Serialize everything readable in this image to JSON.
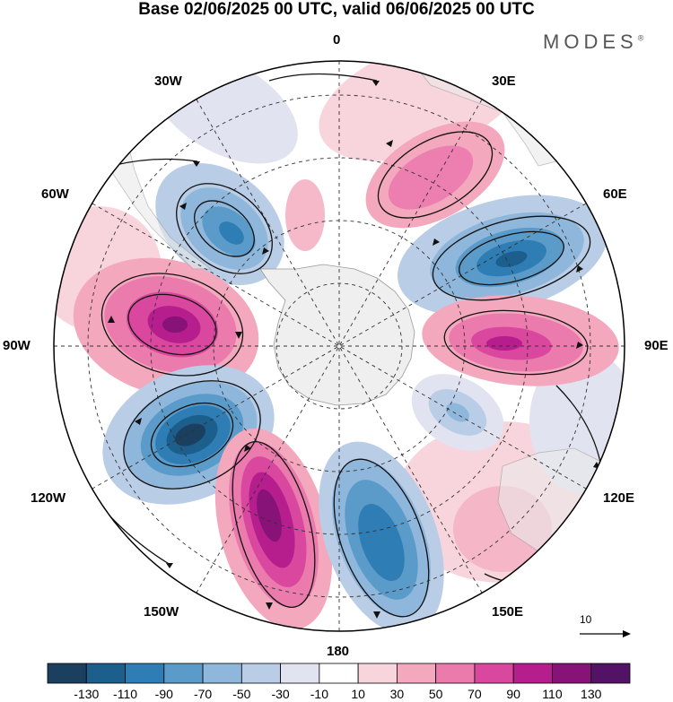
{
  "title": "Base 02/06/2025 00 UTC, valid 06/06/2025 00 UTC",
  "brand": "MODES",
  "brand_mark": "®",
  "longitude_labels": {
    "lon_0": "0",
    "lon_30e": "30E",
    "lon_60e": "60E",
    "lon_90e": "90E",
    "lon_120e": "120E",
    "lon_150e": "150E",
    "lon_180": "180",
    "lon_150w": "150W",
    "lon_120w": "120W",
    "lon_90w": "90W",
    "lon_60w": "60W",
    "lon_30w": "30W"
  },
  "reference_vector": {
    "label": "10",
    "icon": "arrow-right-icon"
  },
  "colorbar": {
    "colors": [
      "#1b3f5e",
      "#1c5e8c",
      "#2f7db5",
      "#5a9bc9",
      "#8fb7db",
      "#b9cde6",
      "#e2e3f0",
      "#ffffff",
      "#f8d5dc",
      "#f3a8bd",
      "#eb7aad",
      "#d9479f",
      "#b51e8c",
      "#871378",
      "#541266"
    ],
    "tick_labels": [
      "-130",
      "-110",
      "-90",
      "-70",
      "-50",
      "-30",
      "-10",
      "10",
      "30",
      "50",
      "70",
      "90",
      "110",
      "130"
    ]
  },
  "anomaly_centers": [
    {
      "sign": "negative",
      "lon": "45W",
      "strength": -80
    },
    {
      "sign": "positive",
      "lon": "30E",
      "strength": 55
    },
    {
      "sign": "negative",
      "lon": "60E",
      "strength": -110
    },
    {
      "sign": "positive",
      "lon": "90W",
      "strength": 120
    },
    {
      "sign": "positive",
      "lon": "95E",
      "strength": 100
    },
    {
      "sign": "negative",
      "lon": "115W",
      "strength": -140
    },
    {
      "sign": "positive",
      "lon": "160W",
      "strength": 125
    },
    {
      "sign": "negative",
      "lon": "160E",
      "strength": -100
    },
    {
      "sign": "negative",
      "lon": "110E",
      "strength": -40
    },
    {
      "sign": "positive",
      "lon": "140E",
      "strength": 35
    }
  ]
}
